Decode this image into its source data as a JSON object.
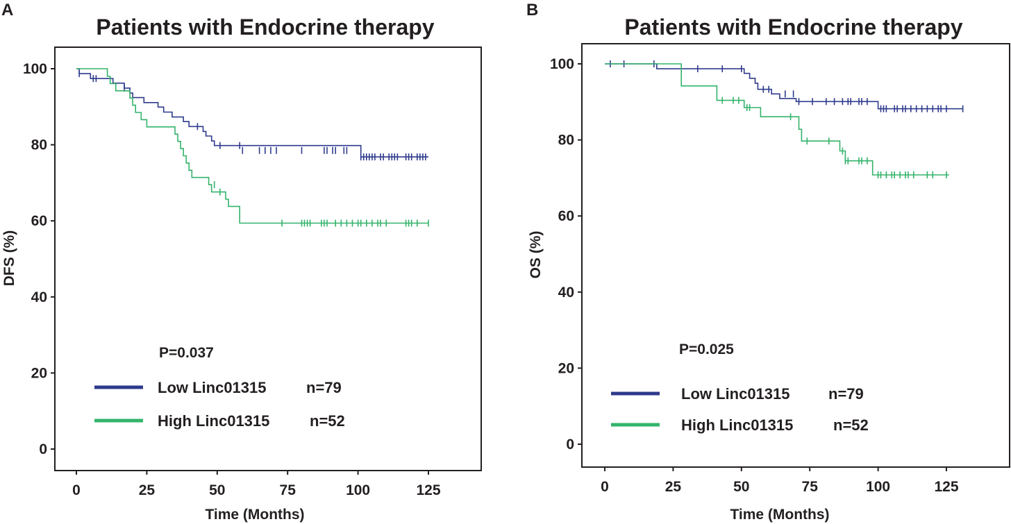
{
  "colors": {
    "low": "#2e3a8c",
    "high": "#33b36b",
    "text": "#231f20"
  },
  "chart_data": [
    {
      "type": "line",
      "subtype": "kaplan-meier",
      "panel": "A",
      "title": "Patients with Endocrine therapy",
      "xlabel": "Time (Months)",
      "ylabel": "DFS (%)",
      "xlim": [
        -8,
        148
      ],
      "ylim": [
        -6,
        105
      ],
      "xticks": [
        0,
        25,
        50,
        75,
        100,
        125
      ],
      "yticks": [
        0,
        20,
        40,
        60,
        80,
        100
      ],
      "p_value": "P=0.037",
      "legend": [
        {
          "label": "Low Linc01315",
          "n": "n=79",
          "color": "#2e3a8c"
        },
        {
          "label": "High Linc01315",
          "n": "n=52",
          "color": "#33b36b"
        }
      ],
      "series": [
        {
          "name": "Low Linc01315",
          "color": "#2e3a8c",
          "steps": [
            [
              0,
              100
            ],
            [
              1,
              98.7
            ],
            [
              5,
              97.4
            ],
            [
              13,
              96.2
            ],
            [
              17,
              94.9
            ],
            [
              19,
              93.6
            ],
            [
              20,
              92.4
            ],
            [
              24,
              91.1
            ],
            [
              29,
              89.9
            ],
            [
              31,
              88.6
            ],
            [
              34,
              87.3
            ],
            [
              38,
              86.1
            ],
            [
              40,
              84.8
            ],
            [
              45,
              83.5
            ],
            [
              46,
              82.3
            ],
            [
              48,
              81
            ],
            [
              49,
              79.8
            ],
            [
              101,
              76.8
            ],
            [
              125,
              76.8
            ]
          ],
          "censored": [
            [
              1,
              98.7
            ],
            [
              6,
              97.4
            ],
            [
              7,
              97.4
            ],
            [
              17,
              94.9
            ],
            [
              43,
              84.8
            ],
            [
              51,
              79.8
            ],
            [
              58,
              79.8
            ],
            [
              59,
              78.5
            ],
            [
              65,
              78.5
            ],
            [
              67,
              78.5
            ],
            [
              69,
              78.5
            ],
            [
              71,
              78.5
            ],
            [
              80,
              78.5
            ],
            [
              88,
              78.5
            ],
            [
              89,
              78.5
            ],
            [
              91,
              78.5
            ],
            [
              92,
              78.5
            ],
            [
              95,
              78.5
            ],
            [
              96,
              78.5
            ],
            [
              101,
              76.8
            ],
            [
              102,
              76.8
            ],
            [
              103,
              76.8
            ],
            [
              104,
              76.8
            ],
            [
              105,
              76.8
            ],
            [
              106,
              76.8
            ],
            [
              108,
              76.8
            ],
            [
              109,
              76.8
            ],
            [
              111,
              76.8
            ],
            [
              112,
              76.8
            ],
            [
              113,
              76.8
            ],
            [
              114,
              76.8
            ],
            [
              117,
              76.8
            ],
            [
              118,
              76.8
            ],
            [
              119,
              76.8
            ],
            [
              121,
              76.8
            ],
            [
              122,
              76.8
            ],
            [
              123,
              76.8
            ],
            [
              124,
              76.8
            ]
          ]
        },
        {
          "name": "High Linc01315",
          "color": "#33b36b",
          "steps": [
            [
              0,
              100
            ],
            [
              11,
              98
            ],
            [
              12,
              96.1
            ],
            [
              14,
              94.2
            ],
            [
              19,
              92.3
            ],
            [
              20,
              90.4
            ],
            [
              21,
              88.5
            ],
            [
              23,
              86.6
            ],
            [
              25,
              84.7
            ],
            [
              35,
              82.8
            ],
            [
              36,
              80.9
            ],
            [
              37,
              79
            ],
            [
              38,
              77.1
            ],
            [
              39,
              75.2
            ],
            [
              40,
              73.3
            ],
            [
              41,
              71.4
            ],
            [
              47,
              69.5
            ],
            [
              48,
              67.6
            ],
            [
              53,
              65.7
            ],
            [
              54,
              63.8
            ],
            [
              58,
              59.4
            ],
            [
              125,
              59.4
            ]
          ],
          "censored": [
            [
              49,
              69.5
            ],
            [
              51,
              67.6
            ],
            [
              73,
              59.4
            ],
            [
              80,
              59.4
            ],
            [
              81,
              59.4
            ],
            [
              82,
              59.4
            ],
            [
              83,
              59.4
            ],
            [
              87,
              59.4
            ],
            [
              88,
              59.4
            ],
            [
              89,
              59.4
            ],
            [
              92,
              59.4
            ],
            [
              94,
              59.4
            ],
            [
              96,
              59.4
            ],
            [
              98,
              59.4
            ],
            [
              100,
              59.4
            ],
            [
              101,
              59.4
            ],
            [
              103,
              59.4
            ],
            [
              105,
              59.4
            ],
            [
              107,
              59.4
            ],
            [
              108,
              59.4
            ],
            [
              110,
              59.4
            ],
            [
              117,
              59.4
            ],
            [
              118,
              59.4
            ],
            [
              119,
              59.4
            ],
            [
              121,
              59.4
            ],
            [
              125,
              59.4
            ]
          ]
        }
      ]
    },
    {
      "type": "line",
      "subtype": "kaplan-meier",
      "panel": "B",
      "title": "Patients with Endocrine therapy",
      "xlabel": "Time (Months)",
      "ylabel": "OS (%)",
      "xlim": [
        -8,
        148
      ],
      "ylim": [
        -6,
        105
      ],
      "xticks": [
        0,
        25,
        50,
        75,
        100,
        125
      ],
      "yticks": [
        0,
        20,
        40,
        60,
        80,
        100
      ],
      "p_value": "P=0.025",
      "legend": [
        {
          "label": "Low Linc01315",
          "n": "n=79",
          "color": "#2e3a8c"
        },
        {
          "label": "High Linc01315",
          "n": "n=52",
          "color": "#33b36b"
        }
      ],
      "series": [
        {
          "name": "Low Linc01315",
          "color": "#2e3a8c",
          "steps": [
            [
              0,
              100
            ],
            [
              19,
              98.7
            ],
            [
              51,
              97.5
            ],
            [
              53,
              96.2
            ],
            [
              55,
              94.9
            ],
            [
              56,
              93.3
            ],
            [
              61,
              92.1
            ],
            [
              64,
              90.9
            ],
            [
              70,
              90.1
            ],
            [
              100,
              88.2
            ],
            [
              131,
              88.2
            ]
          ],
          "censored": [
            [
              2,
              100
            ],
            [
              7,
              100
            ],
            [
              18,
              100
            ],
            [
              34,
              98.7
            ],
            [
              43,
              98.7
            ],
            [
              50,
              98.7
            ],
            [
              58,
              93.3
            ],
            [
              60,
              93.3
            ],
            [
              66,
              92.1
            ],
            [
              69,
              92.1
            ],
            [
              71,
              90.1
            ],
            [
              76,
              90.1
            ],
            [
              81,
              90.1
            ],
            [
              84,
              90.1
            ],
            [
              87,
              90.1
            ],
            [
              89,
              90.1
            ],
            [
              90,
              90.1
            ],
            [
              93,
              90.1
            ],
            [
              94,
              90.1
            ],
            [
              96,
              90.1
            ],
            [
              101,
              88.2
            ],
            [
              102,
              88.2
            ],
            [
              103,
              88.2
            ],
            [
              106,
              88.2
            ],
            [
              107,
              88.2
            ],
            [
              109,
              88.2
            ],
            [
              110,
              88.2
            ],
            [
              112,
              88.2
            ],
            [
              114,
              88.2
            ],
            [
              116,
              88.2
            ],
            [
              118,
              88.2
            ],
            [
              120,
              88.2
            ],
            [
              122,
              88.2
            ],
            [
              123,
              88.2
            ],
            [
              125,
              88.2
            ],
            [
              131,
              88.2
            ]
          ]
        },
        {
          "name": "High Linc01315",
          "color": "#33b36b",
          "steps": [
            [
              0,
              100
            ],
            [
              28,
              94.2
            ],
            [
              41,
              90.4
            ],
            [
              51,
              88.5
            ],
            [
              57,
              86.1
            ],
            [
              71,
              82.8
            ],
            [
              72,
              79.7
            ],
            [
              86,
              77.1
            ],
            [
              88,
              74.5
            ],
            [
              98,
              70.8
            ],
            [
              126,
              70.8
            ]
          ],
          "censored": [
            [
              43,
              90.4
            ],
            [
              47,
              90.4
            ],
            [
              49,
              90.4
            ],
            [
              52,
              88.5
            ],
            [
              53,
              88.5
            ],
            [
              68,
              86.1
            ],
            [
              74,
              79.7
            ],
            [
              82,
              79.7
            ],
            [
              87,
              77.1
            ],
            [
              88,
              74.5
            ],
            [
              89,
              74.5
            ],
            [
              93,
              74.5
            ],
            [
              94,
              74.5
            ],
            [
              96,
              74.5
            ],
            [
              100,
              70.8
            ],
            [
              101,
              70.8
            ],
            [
              103,
              70.8
            ],
            [
              105,
              70.8
            ],
            [
              106,
              70.8
            ],
            [
              108,
              70.8
            ],
            [
              110,
              70.8
            ],
            [
              111,
              70.8
            ],
            [
              113,
              70.8
            ],
            [
              118,
              70.8
            ],
            [
              120,
              70.8
            ],
            [
              125,
              70.8
            ]
          ]
        }
      ]
    }
  ]
}
